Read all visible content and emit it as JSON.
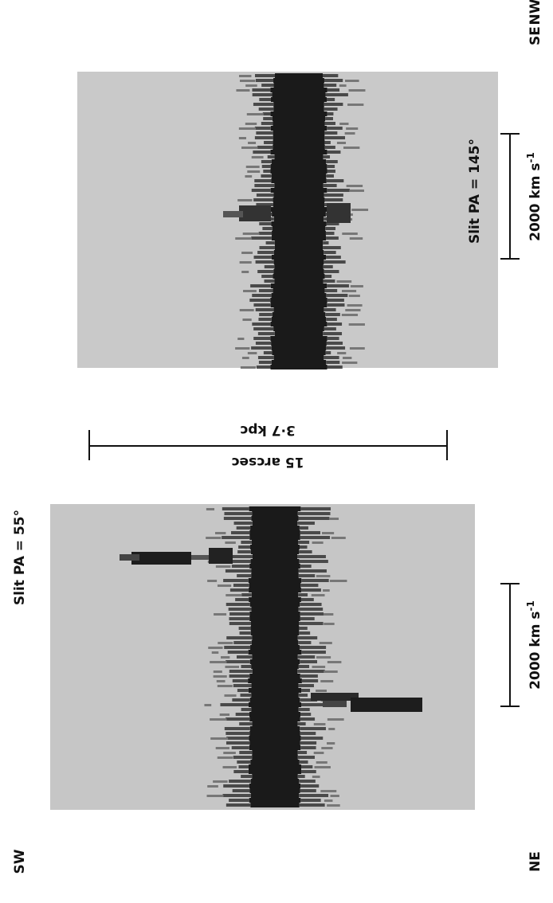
{
  "directions": {
    "nw": "NW",
    "se": "SE",
    "sw": "SW",
    "ne": "NE"
  },
  "panels": [
    {
      "title": "Slit PA = 145°",
      "scale_label": "2000 km s",
      "scale_exponent": "-1"
    },
    {
      "title": "Slit PA = 55°",
      "scale_label": "2000 km s",
      "scale_exponent": "-1"
    }
  ],
  "spatial_scale": {
    "arcsec": "15 arcsec",
    "kpc": "3·7 kpc"
  }
}
